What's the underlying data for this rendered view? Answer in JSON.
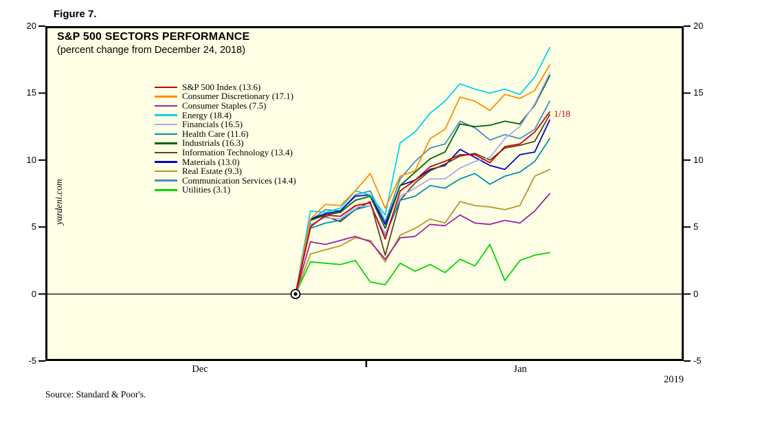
{
  "figure_label": "Figure 7.",
  "chart": {
    "title": "S&P 500 SECTORS PERFORMANCE",
    "subtitle": "(percent change from December 24, 2018)",
    "watermark": "yardeni.com",
    "source": "Source: Standard & Poor's.",
    "annotation": {
      "text": "1/18",
      "color": "#cc0000"
    },
    "x_axis": {
      "month_labels": [
        "Dec",
        "Jan"
      ],
      "year_label": "2019"
    },
    "y_axis": {
      "ticks": [
        20,
        15,
        10,
        5,
        0,
        -5
      ],
      "min": -5,
      "max": 20
    }
  },
  "chart_data": {
    "type": "line",
    "title": "S&P 500 SECTORS PERFORMANCE",
    "subtitle": "(percent change from December 24, 2018)",
    "xlabel": "",
    "ylabel": "percent change from December 24, 2018",
    "ylim": [
      -5,
      20
    ],
    "grid": false,
    "legend_position": "inside-top-left",
    "plot_background": "#ffffe6",
    "x": [
      "12/24",
      "12/26",
      "12/27",
      "12/28",
      "12/31",
      "1/2",
      "1/3",
      "1/4",
      "1/7",
      "1/8",
      "1/9",
      "1/10",
      "1/11",
      "1/14",
      "1/15",
      "1/16",
      "1/17",
      "1/18"
    ],
    "series": [
      {
        "name": "S&P 500 Index",
        "final": 13.6,
        "label": "S&P 500 Index (13.6)",
        "color": "#cc0000",
        "values": [
          0,
          5.0,
          5.9,
          5.8,
          6.6,
          6.8,
          4.1,
          7.7,
          8.5,
          9.5,
          9.9,
          10.4,
          10.4,
          9.8,
          11.0,
          11.2,
          12.1,
          13.6
        ]
      },
      {
        "name": "Consumer Discretionary",
        "final": 17.1,
        "label": "Consumer Discretionary (17.1)",
        "color": "#ff8c00",
        "values": [
          0,
          5.6,
          6.7,
          6.6,
          7.7,
          9.0,
          6.4,
          8.8,
          9.2,
          11.6,
          12.3,
          14.7,
          14.4,
          13.7,
          14.9,
          14.6,
          15.2,
          17.1
        ]
      },
      {
        "name": "Consumer Staples",
        "final": 7.5,
        "label": "Consumer Staples (7.5)",
        "color": "#a020a0",
        "values": [
          0,
          3.9,
          3.7,
          4.0,
          4.3,
          3.9,
          2.6,
          4.2,
          4.3,
          5.2,
          5.1,
          5.9,
          5.3,
          5.2,
          5.5,
          5.3,
          6.2,
          7.5
        ]
      },
      {
        "name": "Energy",
        "final": 18.4,
        "label": "Energy (18.4)",
        "color": "#00d4e8",
        "values": [
          0,
          6.2,
          6.1,
          6.4,
          7.7,
          7.4,
          5.9,
          11.3,
          12.1,
          13.5,
          14.4,
          15.7,
          15.3,
          15.0,
          15.3,
          14.9,
          16.2,
          18.4
        ]
      },
      {
        "name": "Financials",
        "final": 16.5,
        "label": "Financials (16.5)",
        "color": "#a8a8f8",
        "values": [
          0,
          5.2,
          5.7,
          5.6,
          6.5,
          6.6,
          4.5,
          7.3,
          7.9,
          8.6,
          8.6,
          9.4,
          9.9,
          10.2,
          11.6,
          12.5,
          14.2,
          16.5
        ]
      },
      {
        "name": "Health Care",
        "final": 11.6,
        "label": "Health Care (11.6)",
        "color": "#0090a8",
        "values": [
          0,
          4.9,
          5.3,
          5.5,
          6.3,
          6.6,
          4.4,
          7.0,
          7.3,
          8.1,
          7.9,
          8.6,
          9.0,
          8.2,
          8.8,
          9.1,
          9.9,
          11.6
        ]
      },
      {
        "name": "Industrials",
        "final": 16.3,
        "label": "Industrials (16.3)",
        "color": "#006400",
        "values": [
          0,
          5.5,
          5.9,
          6.1,
          7.0,
          7.3,
          4.9,
          8.1,
          9.1,
          10.1,
          10.6,
          12.7,
          12.5,
          12.6,
          12.9,
          12.7,
          14.1,
          16.3
        ]
      },
      {
        "name": "Information Technology",
        "final": 13.4,
        "label": "Information Technology (13.4)",
        "color": "#5a4414",
        "values": [
          0,
          5.1,
          5.8,
          5.4,
          6.3,
          6.9,
          2.9,
          7.0,
          8.3,
          9.2,
          9.7,
          10.3,
          10.5,
          10.0,
          10.9,
          11.1,
          11.4,
          13.4
        ]
      },
      {
        "name": "Materials",
        "final": 13.0,
        "label": "Materials (13.0)",
        "color": "#0000c8",
        "values": [
          0,
          5.6,
          6.0,
          6.2,
          7.3,
          7.4,
          5.2,
          8.1,
          8.5,
          9.3,
          9.6,
          10.8,
          10.2,
          9.6,
          9.3,
          10.4,
          10.6,
          13.0
        ]
      },
      {
        "name": "Real Estate",
        "final": 9.3,
        "label": "Real Estate (9.3)",
        "color": "#b09828",
        "values": [
          0,
          3.0,
          3.3,
          3.6,
          4.2,
          4.0,
          2.4,
          4.4,
          4.9,
          5.6,
          5.3,
          6.9,
          6.6,
          6.5,
          6.3,
          6.6,
          8.8,
          9.3
        ]
      },
      {
        "name": "Communication Services",
        "final": 14.4,
        "label": "Communication Services (14.4)",
        "color": "#4090c0",
        "values": [
          0,
          5.5,
          6.3,
          6.2,
          7.4,
          7.7,
          5.4,
          8.6,
          9.9,
          10.9,
          11.2,
          12.9,
          12.4,
          11.5,
          11.9,
          11.6,
          12.3,
          14.4
        ]
      },
      {
        "name": "Utilities",
        "final": 3.1,
        "label": "Utilities (3.1)",
        "color": "#00d800",
        "values": [
          0,
          2.4,
          2.3,
          2.2,
          2.5,
          0.9,
          0.7,
          2.3,
          1.7,
          2.2,
          1.6,
          2.6,
          2.1,
          3.7,
          1.0,
          2.5,
          2.9,
          3.1
        ]
      }
    ]
  }
}
